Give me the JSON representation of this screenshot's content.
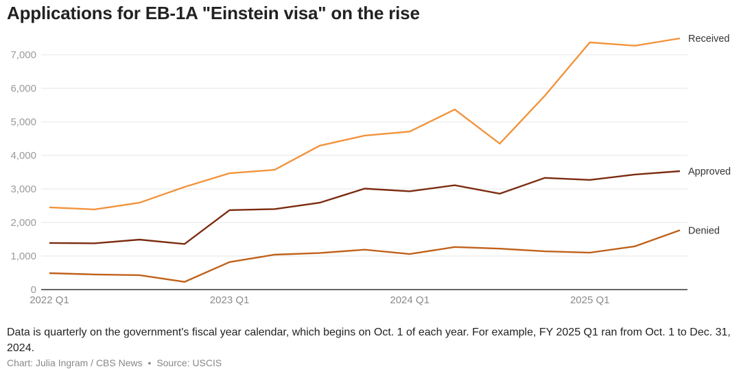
{
  "title": "Applications for EB-1A \"Einstein visa\" on the rise",
  "note": "Data is quarterly on the government's fiscal year calendar, which begins on Oct. 1 of each year. For example, FY 2025 Q1 ran from Oct. 1 to Dec. 31, 2024.",
  "credit": {
    "chart": "Chart: Julia Ingram / CBS News",
    "separator": "•",
    "source": "Source: USCIS"
  },
  "chart_data": {
    "type": "line",
    "title": "Applications for EB-1A \"Einstein visa\" on the rise",
    "xlabel": "",
    "ylabel": "",
    "x": [
      "2022 Q1",
      "2022 Q2",
      "2022 Q3",
      "2022 Q4",
      "2023 Q1",
      "2023 Q2",
      "2023 Q3",
      "2023 Q4",
      "2024 Q1",
      "2024 Q2",
      "2024 Q3",
      "2024 Q4",
      "2025 Q1",
      "2025 Q2",
      "2025 Q3"
    ],
    "x_tick_labels": [
      "2022 Q1",
      "2023 Q1",
      "2024 Q1",
      "2025 Q1"
    ],
    "ylim": [
      0,
      7500
    ],
    "y_ticks": [
      0,
      1000,
      2000,
      3000,
      4000,
      5000,
      6000,
      7000
    ],
    "y_tick_labels": [
      "0",
      "1,000",
      "2,000",
      "3,000",
      "4,000",
      "5,000",
      "6,000",
      "7,000"
    ],
    "grid": true,
    "legend": "direct labels at right end of lines",
    "series": [
      {
        "name": "Received",
        "color": "#f2933b",
        "values": [
          2450,
          2390,
          2590,
          3060,
          3470,
          3570,
          4290,
          4590,
          4710,
          5370,
          4350,
          5780,
          7370,
          7270,
          7490
        ]
      },
      {
        "name": "Approved",
        "color": "#7b2a0f",
        "values": [
          1390,
          1380,
          1490,
          1360,
          2370,
          2400,
          2590,
          3010,
          2930,
          3110,
          2860,
          3330,
          3270,
          3430,
          3530
        ]
      },
      {
        "name": "Denied",
        "color": "#c0611a",
        "values": [
          490,
          450,
          430,
          230,
          820,
          1040,
          1090,
          1190,
          1060,
          1270,
          1220,
          1140,
          1100,
          1290,
          1770
        ]
      }
    ]
  }
}
